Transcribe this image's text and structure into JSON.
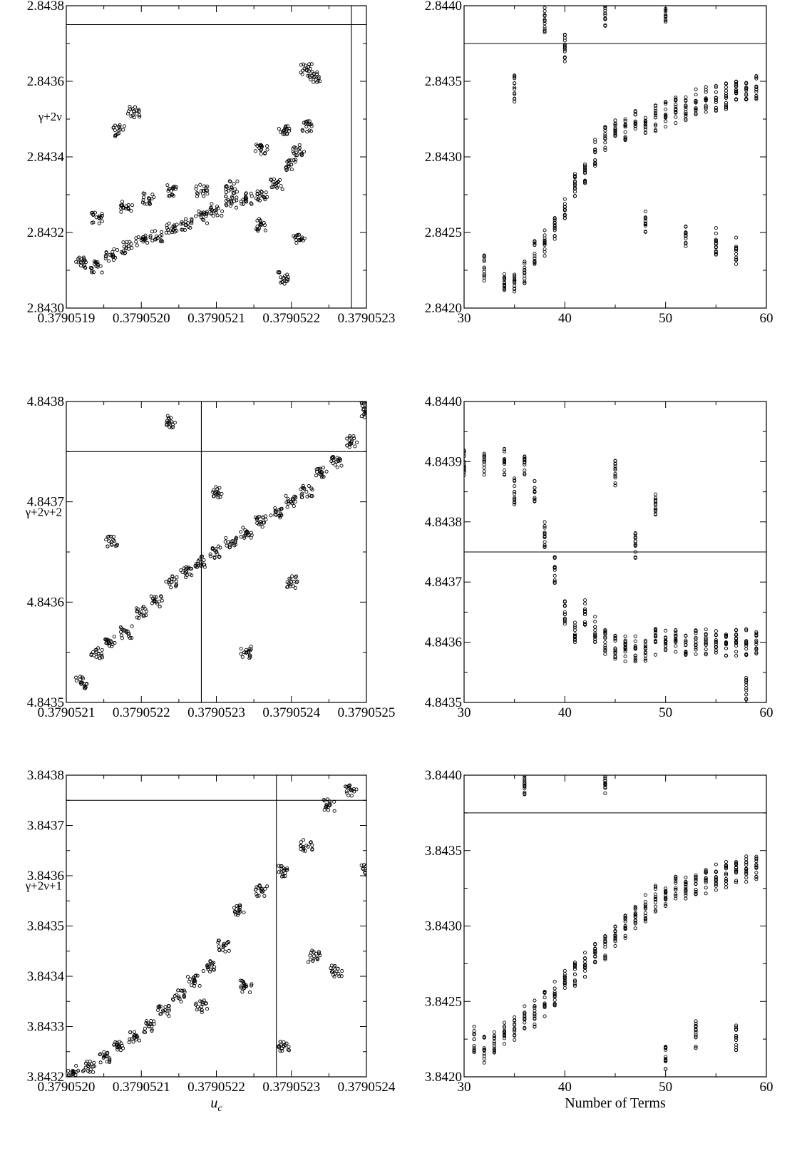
{
  "chart_data": [
    {
      "id": "c1",
      "type": "scatter",
      "ylabel": "γ+2ν",
      "xlabel": "",
      "xlim": [
        0.3790519,
        0.3790523
      ],
      "ylim": [
        2.843,
        2.8438
      ],
      "x_ticks": [
        "0.3790519",
        "0.3790520",
        "0.3790521",
        "0.3790522",
        "0.3790523"
      ],
      "y_ticks": [
        "2.8430",
        "2.8432",
        "2.8434",
        "2.8436",
        "2.8438"
      ],
      "ref_x": 0.37905228,
      "ref_y": 2.84375,
      "series": [
        {
          "points": [
            [
              0.37905192,
              2.84312
            ],
            [
              0.37905194,
              2.84311
            ],
            [
              0.37905196,
              2.84314
            ],
            [
              0.37905198,
              2.84316
            ],
            [
              0.379052,
              2.84318
            ],
            [
              0.37905202,
              2.84319
            ],
            [
              0.37905204,
              2.84321
            ],
            [
              0.37905206,
              2.84322
            ],
            [
              0.37905208,
              2.84324
            ],
            [
              0.3790521,
              2.84326
            ],
            [
              0.37905212,
              2.84328
            ],
            [
              0.37905214,
              2.84329
            ],
            [
              0.37905216,
              2.8433
            ],
            [
              0.37905218,
              2.84333
            ],
            [
              0.3790522,
              2.84338
            ],
            [
              0.37905221,
              2.84342
            ],
            [
              0.37905222,
              2.84348
            ],
            [
              0.37905223,
              2.84361
            ],
            [
              0.37905201,
              2.84329
            ],
            [
              0.37905204,
              2.84331
            ],
            [
              0.37905208,
              2.84331
            ],
            [
              0.37905212,
              2.84332
            ],
            [
              0.37905198,
              2.84327
            ],
            [
              0.37905216,
              2.84342
            ],
            [
              0.37905219,
              2.84347
            ],
            [
              0.37905197,
              2.84347
            ],
            [
              0.37905199,
              2.84352
            ],
            [
              0.37905216,
              2.84322
            ],
            [
              0.37905221,
              2.84318
            ],
            [
              0.37905222,
              2.84363
            ],
            [
              0.37905219,
              2.84308
            ],
            [
              0.37905194,
              2.84324
            ]
          ]
        }
      ]
    },
    {
      "id": "c2",
      "type": "scatter",
      "xlabel": "",
      "ylabel": "",
      "xlim": [
        30,
        60
      ],
      "ylim": [
        2.842,
        2.844
      ],
      "x_ticks": [
        "30",
        "40",
        "50",
        "60"
      ],
      "y_ticks": [
        "2.8420",
        "2.8425",
        "2.8430",
        "2.8435",
        "2.8440"
      ],
      "ref_y": 2.84375,
      "series": [
        {
          "points": [
            [
              32,
              2.84226
            ],
            [
              34,
              2.8422
            ],
            [
              35,
              2.84218
            ],
            [
              36,
              2.84225
            ],
            [
              37,
              2.84236
            ],
            [
              38,
              2.84243
            ],
            [
              39,
              2.84254
            ],
            [
              40,
              2.84265
            ],
            [
              41,
              2.84282
            ],
            [
              42,
              2.8429
            ],
            [
              43,
              2.84303
            ],
            [
              44,
              2.84312
            ],
            [
              45,
              2.84318
            ],
            [
              46,
              2.8432
            ],
            [
              47,
              2.84322
            ],
            [
              48,
              2.84324
            ],
            [
              49,
              2.84326
            ],
            [
              50,
              2.84328
            ],
            [
              51,
              2.84331
            ],
            [
              52,
              2.84333
            ],
            [
              53,
              2.84336
            ],
            [
              54,
              2.84338
            ],
            [
              55,
              2.84339
            ],
            [
              56,
              2.8434
            ],
            [
              57,
              2.84342
            ],
            [
              58,
              2.84344
            ],
            [
              59,
              2.84346
            ],
            [
              35,
              2.84345
            ],
            [
              38,
              2.8439
            ],
            [
              40,
              2.84372
            ],
            [
              44,
              2.84395
            ],
            [
              50,
              2.84398
            ],
            [
              52,
              2.84248
            ],
            [
              55,
              2.84244
            ],
            [
              57,
              2.84238
            ],
            [
              48,
              2.84256
            ]
          ]
        }
      ]
    },
    {
      "id": "c3",
      "type": "scatter",
      "ylabel": "γ+2ν+2",
      "xlabel": "",
      "xlim": [
        0.3790521,
        0.3790525
      ],
      "ylim": [
        4.8435,
        4.8438
      ],
      "x_ticks": [
        "0.3790521",
        "0.3790522",
        "0.3790523",
        "0.3790524",
        "0.3790525"
      ],
      "y_ticks": [
        "4.8435",
        "4.8436",
        "4.8437",
        "4.8438"
      ],
      "ref_x": 0.37905228,
      "ref_y": 4.84375,
      "series": [
        {
          "points": [
            [
              0.37905212,
              4.84352
            ],
            [
              0.37905214,
              4.84355
            ],
            [
              0.37905216,
              4.84356
            ],
            [
              0.37905218,
              4.84357
            ],
            [
              0.3790522,
              4.84359
            ],
            [
              0.37905222,
              4.8436
            ],
            [
              0.37905224,
              4.84362
            ],
            [
              0.37905226,
              4.84363
            ],
            [
              0.37905228,
              4.84364
            ],
            [
              0.3790523,
              4.84365
            ],
            [
              0.37905232,
              4.84366
            ],
            [
              0.37905234,
              4.84367
            ],
            [
              0.37905236,
              4.84368
            ],
            [
              0.37905238,
              4.84369
            ],
            [
              0.3790524,
              4.8437
            ],
            [
              0.37905242,
              4.84371
            ],
            [
              0.37905244,
              4.84373
            ],
            [
              0.37905246,
              4.84374
            ],
            [
              0.37905248,
              4.84376
            ],
            [
              0.3790525,
              4.84379
            ],
            [
              0.37905224,
              4.84378
            ],
            [
              0.3790525,
              4.8438
            ],
            [
              0.37905216,
              4.84366
            ],
            [
              0.37905234,
              4.84355
            ],
            [
              0.3790523,
              4.84371
            ],
            [
              0.3790524,
              4.84362
            ]
          ]
        }
      ]
    },
    {
      "id": "c4",
      "type": "scatter",
      "xlabel": "",
      "ylabel": "",
      "xlim": [
        30,
        60
      ],
      "ylim": [
        4.8435,
        4.844
      ],
      "x_ticks": [
        "30",
        "40",
        "50",
        "60"
      ],
      "y_ticks": [
        "4.8435",
        "4.8436",
        "4.8437",
        "4.8438",
        "4.8439",
        "4.8440"
      ],
      "ref_y": 4.84375,
      "series": [
        {
          "points": [
            [
              30,
              4.8439
            ],
            [
              32,
              4.8439
            ],
            [
              34,
              4.8439
            ],
            [
              35,
              4.84385
            ],
            [
              36,
              4.8439
            ],
            [
              37,
              4.84385
            ],
            [
              38,
              4.84378
            ],
            [
              39,
              4.84372
            ],
            [
              40,
              4.84365
            ],
            [
              41,
              4.84362
            ],
            [
              42,
              4.84365
            ],
            [
              43,
              4.84362
            ],
            [
              44,
              4.8436
            ],
            [
              45,
              4.84359
            ],
            [
              46,
              4.84359
            ],
            [
              47,
              4.84359
            ],
            [
              48,
              4.84359
            ],
            [
              49,
              4.8436
            ],
            [
              50,
              4.8436
            ],
            [
              51,
              4.8436
            ],
            [
              52,
              4.8436
            ],
            [
              53,
              4.8436
            ],
            [
              54,
              4.8436
            ],
            [
              55,
              4.8436
            ],
            [
              56,
              4.8436
            ],
            [
              57,
              4.8436
            ],
            [
              58,
              4.8436
            ],
            [
              59,
              4.8436
            ],
            [
              45,
              4.84388
            ],
            [
              49,
              4.84383
            ],
            [
              58,
              4.84352
            ],
            [
              47,
              4.84376
            ]
          ]
        }
      ]
    },
    {
      "id": "c5",
      "type": "scatter",
      "ylabel": "γ+2ν+1",
      "xlabel": "u_c",
      "xlim": [
        0.379052,
        0.3790524
      ],
      "ylim": [
        3.8432,
        3.8438
      ],
      "x_ticks": [
        "0.3790520",
        "0.3790521",
        "0.3790522",
        "0.3790523",
        "0.3790524"
      ],
      "y_ticks": [
        "3.8432",
        "3.8433",
        "3.8434",
        "3.8435",
        "3.8436",
        "3.8437",
        "3.8438"
      ],
      "ref_x": 0.37905228,
      "ref_y": 3.84375,
      "series": [
        {
          "points": [
            [
              0.37905201,
              3.84321
            ],
            [
              0.37905203,
              3.84322
            ],
            [
              0.37905205,
              3.84324
            ],
            [
              0.37905207,
              3.84326
            ],
            [
              0.37905209,
              3.84328
            ],
            [
              0.37905211,
              3.8433
            ],
            [
              0.37905213,
              3.84333
            ],
            [
              0.37905215,
              3.84336
            ],
            [
              0.37905217,
              3.84339
            ],
            [
              0.37905219,
              3.84342
            ],
            [
              0.37905221,
              3.84346
            ],
            [
              0.37905223,
              3.84353
            ],
            [
              0.37905226,
              3.84357
            ],
            [
              0.37905229,
              3.84361
            ],
            [
              0.37905232,
              3.84366
            ],
            [
              0.37905235,
              3.84374
            ],
            [
              0.37905238,
              3.84377
            ],
            [
              0.37905233,
              3.84344
            ],
            [
              0.37905236,
              3.84341
            ],
            [
              0.37905224,
              3.84338
            ],
            [
              0.37905218,
              3.84334
            ],
            [
              0.37905229,
              3.84326
            ],
            [
              0.3790524,
              3.84361
            ]
          ]
        }
      ]
    },
    {
      "id": "c6",
      "type": "scatter",
      "xlabel": "Number of Terms",
      "ylabel": "",
      "xlim": [
        30,
        60
      ],
      "ylim": [
        3.842,
        3.844
      ],
      "x_ticks": [
        "30",
        "40",
        "50",
        "60"
      ],
      "y_ticks": [
        "3.8420",
        "3.8425",
        "3.8430",
        "3.8435",
        "3.8440"
      ],
      "ref_y": 3.84375,
      "series": [
        {
          "points": [
            [
              31,
              3.84225
            ],
            [
              32,
              3.84218
            ],
            [
              33,
              3.84222
            ],
            [
              34,
              3.84228
            ],
            [
              35,
              3.84232
            ],
            [
              36,
              3.84238
            ],
            [
              37,
              3.84242
            ],
            [
              38,
              3.84248
            ],
            [
              39,
              3.84255
            ],
            [
              40,
              3.84262
            ],
            [
              41,
              3.84268
            ],
            [
              42,
              3.84274
            ],
            [
              43,
              3.8428
            ],
            [
              44,
              3.84286
            ],
            [
              45,
              3.84292
            ],
            [
              46,
              3.84298
            ],
            [
              47,
              3.84306
            ],
            [
              48,
              3.84312
            ],
            [
              49,
              3.84318
            ],
            [
              50,
              3.84322
            ],
            [
              51,
              3.84324
            ],
            [
              52,
              3.84326
            ],
            [
              53,
              3.84328
            ],
            [
              54,
              3.8433
            ],
            [
              55,
              3.84332
            ],
            [
              56,
              3.84334
            ],
            [
              57,
              3.84336
            ],
            [
              58,
              3.84338
            ],
            [
              59,
              3.8434
            ],
            [
              36,
              3.84395
            ],
            [
              44,
              3.84392
            ],
            [
              50,
              3.84212
            ],
            [
              53,
              3.84228
            ],
            [
              57,
              3.84226
            ]
          ]
        }
      ]
    }
  ]
}
